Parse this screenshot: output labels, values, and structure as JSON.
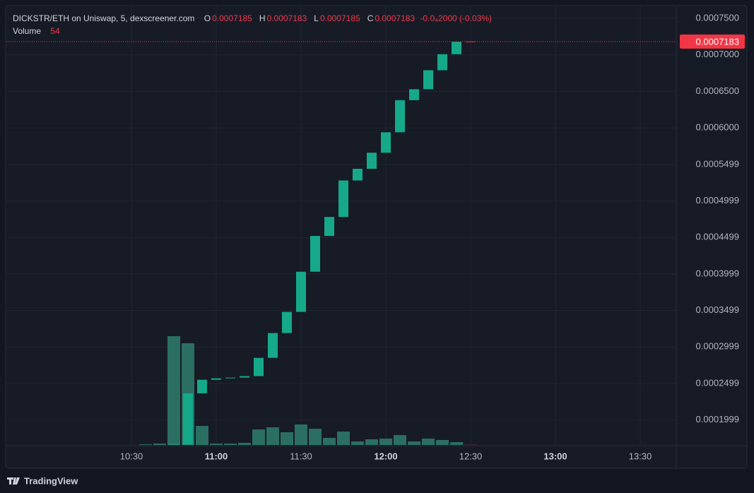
{
  "chart_data": {
    "type": "candlestick",
    "title": "DICKSTR/ETH on Uniswap, 5, dexscreener.com",
    "ohlc": [
      {
        "label": "O",
        "value": 0.0007185
      },
      {
        "label": "H",
        "value": 0.0007183
      },
      {
        "label": "L",
        "value": 0.0007185
      },
      {
        "label": "C",
        "value": 0.0007183
      }
    ],
    "change": "-0.0₄2000 (-0.03%)",
    "volume_label": "Volume",
    "categories": [
      "10:30",
      null,
      null,
      null,
      null,
      null,
      "11:00",
      null,
      null,
      null,
      null,
      null,
      "11:30",
      null,
      null,
      null,
      null,
      null,
      "12:00",
      null,
      null,
      null,
      null,
      null,
      "12:30",
      null,
      null,
      null,
      null,
      null,
      "13:00",
      null,
      null,
      null,
      null,
      null,
      "13:30"
    ],
    "open": [
      null,
      null,
      null,
      0.000166,
      0.000166,
      0.0002364,
      0.000255,
      0.000257,
      0.000258,
      0.00026,
      0.000285,
      0.000319,
      0.000348,
      0.000403,
      0.000452,
      0.000478,
      0.000528,
      0.000544,
      0.000566,
      0.000594,
      0.000638,
      0.000653,
      0.000679,
      0.000701,
      0.0007185,
      null,
      null,
      null,
      null,
      null,
      null,
      null,
      null,
      null,
      null,
      null,
      null
    ],
    "close": [
      null,
      null,
      null,
      0.000167,
      0.0002364,
      0.000255,
      0.000257,
      0.000258,
      0.00026,
      0.000285,
      0.000319,
      0.000348,
      0.000403,
      0.000452,
      0.000478,
      0.000528,
      0.000544,
      0.000566,
      0.000594,
      0.000638,
      0.000653,
      0.000679,
      0.000701,
      0.000718,
      0.0007183,
      null,
      null,
      null,
      null,
      null,
      null,
      null,
      null,
      null,
      null,
      null,
      null
    ],
    "volume": [
      null,
      130,
      260,
      20000,
      18700,
      3500,
      260,
      260,
      390,
      2860,
      3250,
      2340,
      3770,
      2990,
      1300,
      2470,
      650,
      1040,
      1170,
      1820,
      650,
      1170,
      910,
      520,
      54,
      null,
      null,
      null,
      null,
      null,
      null,
      null,
      null,
      null,
      null,
      null,
      null
    ],
    "volume_lim": [
      0,
      40000
    ],
    "ylim": [
      0.0001657,
      0.0007665
    ],
    "yticks": [
      {
        "value": 0.00075,
        "label": "0.0007500"
      },
      {
        "value": 0.0007,
        "label": "0.0007000"
      },
      {
        "value": 0.00065,
        "label": "0.0006500"
      },
      {
        "value": 0.0006,
        "label": "0.0006000"
      },
      0.0005499,
      0.0004999,
      0.0004499,
      0.0003999,
      0.0003499,
      0.0002999,
      0.0002499,
      0.0001999
    ],
    "last_price": 0.0007183,
    "grid": true,
    "up_color": "#15a98a",
    "down_color": "#f23645",
    "volume_up_color": "#2b6f62",
    "volume_down_color": "#7f2f3b"
  },
  "branding": "TradingView"
}
